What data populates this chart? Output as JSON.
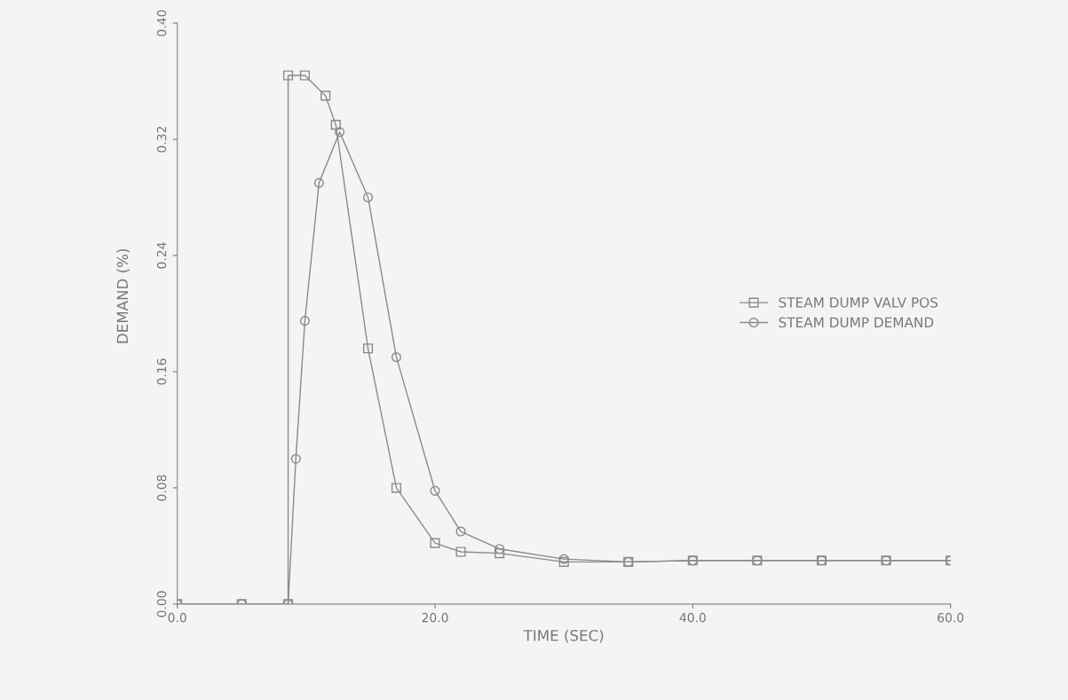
{
  "chart_data": {
    "type": "line",
    "xlabel": "TIME (SEC)",
    "ylabel": "DEMAND (%)",
    "xlim": [
      0,
      60
    ],
    "xticks": [
      {
        "value": 0,
        "label": "0.0"
      },
      {
        "value": 20,
        "label": "20.0"
      },
      {
        "value": 40,
        "label": "40.0"
      },
      {
        "value": 60,
        "label": "60.0"
      }
    ],
    "ylim": [
      0,
      0.4
    ],
    "yticks": [
      {
        "value": 0,
        "label": "0.00"
      },
      {
        "value": 0.08,
        "label": "0.08"
      },
      {
        "value": 0.16,
        "label": "0.16"
      },
      {
        "value": 0.24,
        "label": "0.24"
      },
      {
        "value": 0.32,
        "label": "0.32"
      },
      {
        "value": 0.4,
        "label": "0.40"
      }
    ],
    "grid": false,
    "legend": "right",
    "series": [
      {
        "name": "STEAM DUMP VALV POS",
        "color": "#8a8a8a",
        "marker": "square",
        "x": [
          0,
          5,
          8.6,
          8.6,
          9.9,
          11.5,
          12.3,
          14.8,
          17,
          20,
          22,
          25,
          30,
          35,
          40,
          45,
          50,
          55,
          60
        ],
        "values": [
          0,
          0,
          0,
          0.364,
          0.364,
          0.35,
          0.33,
          0.176,
          0.08,
          0.042,
          0.036,
          0.035,
          0.029,
          0.029,
          0.03,
          0.03,
          0.03,
          0.03,
          0.03
        ]
      },
      {
        "name": "STEAM DUMP DEMAND",
        "color": "#8a8a8a",
        "marker": "circle",
        "x": [
          0,
          5,
          8.6,
          9.2,
          9.9,
          11,
          12.6,
          14.8,
          17,
          20,
          22,
          25,
          30,
          35,
          40,
          45,
          50,
          55,
          60
        ],
        "values": [
          0,
          0,
          0,
          0.1,
          0.195,
          0.29,
          0.325,
          0.28,
          0.17,
          0.078,
          0.05,
          0.038,
          0.031,
          0.029,
          0.03,
          0.03,
          0.03,
          0.03,
          0.03
        ]
      }
    ]
  }
}
